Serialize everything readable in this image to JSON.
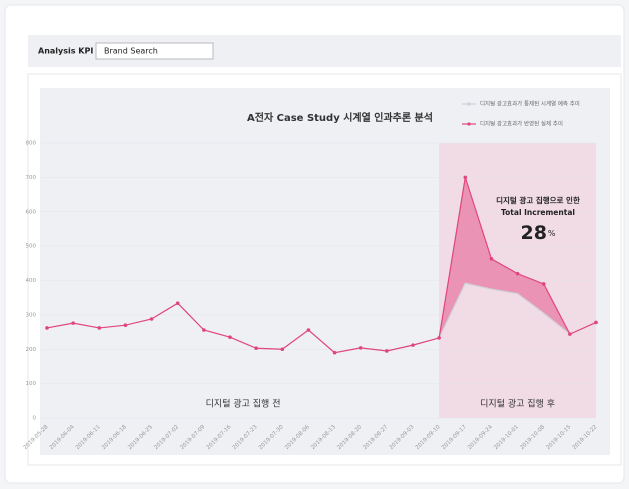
{
  "header": {
    "kpi_label": "Analysis KPI",
    "kpi_value": "Brand Search"
  },
  "chart_data": {
    "type": "line",
    "title": "A전자 Case Study  시계열 인과추론 분석",
    "categories": [
      "2019-05-28",
      "2019-06-04",
      "2019-06-11",
      "2019-06-18",
      "2019-06-25",
      "2019-07-02",
      "2019-07-09",
      "2019-07-16",
      "2019-07-23",
      "2019-07-30",
      "2019-08-06",
      "2019-08-13",
      "2019-08-20",
      "2019-08-27",
      "2019-09-03",
      "2019-09-10",
      "2019-09-17",
      "2019-09-24",
      "2019-10-01",
      "2019-10-08",
      "2019-10-15",
      "2019-10-22"
    ],
    "series": [
      {
        "name": "디지털 광고효과가 통제된 시계열 예측 추이",
        "color": "#cfd0d8",
        "values": [
          null,
          null,
          null,
          null,
          null,
          null,
          null,
          null,
          null,
          null,
          null,
          null,
          null,
          null,
          null,
          233,
          392,
          375,
          362,
          305,
          244,
          null
        ]
      },
      {
        "name": "디지털 광고효과가 반영된 실제 추이",
        "color": "#e0457b",
        "values": [
          262,
          276,
          262,
          270,
          288,
          334,
          256,
          235,
          203,
          200,
          256,
          190,
          204,
          195,
          212,
          233,
          700,
          463,
          420,
          390,
          244,
          278
        ]
      }
    ],
    "ylim": [
      0,
      800
    ],
    "yticks": [
      0,
      100,
      200,
      300,
      400,
      500,
      600,
      700,
      800
    ],
    "period_labels": [
      "디지털 광고 집행 전",
      "디지털 광고 집행 후"
    ],
    "annotation": {
      "line1": "디지털 광고 집행으로 인한",
      "line2": "Total Incremental",
      "value": 28,
      "unit": "%"
    }
  }
}
